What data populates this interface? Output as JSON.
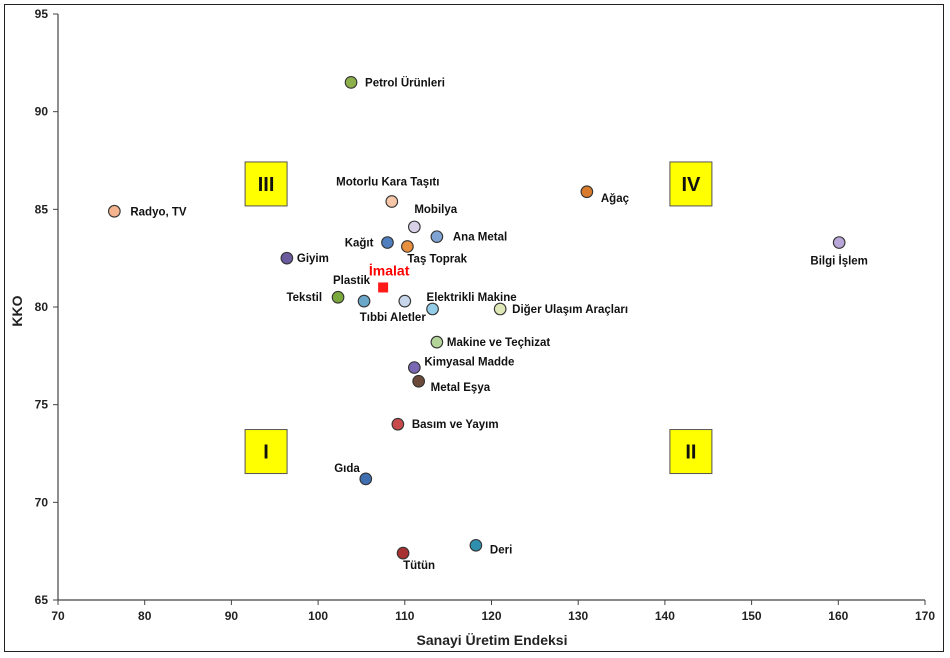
{
  "chart_data": {
    "type": "scatter",
    "xlabel": "Sanayi Üretim Endeksi",
    "ylabel": "KKO",
    "xlim": [
      70,
      170
    ],
    "ylim": [
      65,
      95
    ],
    "x_ticks": [
      "70",
      "80",
      "90",
      "100",
      "110",
      "120",
      "130",
      "140",
      "150",
      "160",
      "170"
    ],
    "y_ticks": [
      "65",
      "70",
      "75",
      "80",
      "85",
      "90",
      "95"
    ],
    "grid": false,
    "points": [
      {
        "label": "Petrol Ürünleri",
        "x": 103.8,
        "y": 91.5,
        "color": "#8db04a"
      },
      {
        "label": "Motorlu Kara Taşıtı",
        "x": 108.5,
        "y": 85.4,
        "color": "#f5c6a8"
      },
      {
        "label": "Ağaç",
        "x": 131.0,
        "y": 85.9,
        "color": "#d97b2c"
      },
      {
        "label": "Radyo, TV",
        "x": 76.5,
        "y": 84.9,
        "color": "#f5b48e"
      },
      {
        "label": "Mobilya",
        "x": 111.1,
        "y": 84.1,
        "color": "#d8d0e6"
      },
      {
        "label": "Bilgi İşlem",
        "x": 160.1,
        "y": 83.3,
        "color": "#b9a6d8"
      },
      {
        "label": "Ana Metal",
        "x": 113.7,
        "y": 83.6,
        "color": "#7fa3d3"
      },
      {
        "label": "Kağıt",
        "x": 108.0,
        "y": 83.3,
        "color": "#4f7fbf"
      },
      {
        "label": "Taş Toprak",
        "x": 110.3,
        "y": 83.1,
        "color": "#e8903d"
      },
      {
        "label": "Giyim",
        "x": 96.4,
        "y": 82.5,
        "color": "#6b5a9e"
      },
      {
        "label": "İmalat",
        "x": 107.5,
        "y": 81.0,
        "color": "#ff1a1a",
        "marker": "square"
      },
      {
        "label": "Plastik",
        "x": 105.3,
        "y": 80.3,
        "color": "#6aa7c9"
      },
      {
        "label": "Tekstil",
        "x": 102.3,
        "y": 80.5,
        "color": "#7aa83d"
      },
      {
        "label": "Tıbbi Aletler",
        "x": 110.0,
        "y": 80.3,
        "color": "#c8d6ec"
      },
      {
        "label": "Elektrikli Makine",
        "x": 113.2,
        "y": 79.9,
        "color": "#93cde8"
      },
      {
        "label": "Diğer Ulaşım Araçları",
        "x": 121.0,
        "y": 79.9,
        "color": "#dde8b6"
      },
      {
        "label": "Makine ve Teçhizat",
        "x": 113.7,
        "y": 78.2,
        "color": "#b5d49a"
      },
      {
        "label": "Kimyasal Madde",
        "x": 111.1,
        "y": 76.9,
        "color": "#7a67b3"
      },
      {
        "label": "Metal Eşya",
        "x": 111.6,
        "y": 76.2,
        "color": "#6b4a3a"
      },
      {
        "label": "Basım ve Yayım",
        "x": 109.2,
        "y": 74.0,
        "color": "#c94a4a"
      },
      {
        "label": "Gıda",
        "x": 105.5,
        "y": 71.2,
        "color": "#3f6fb0"
      },
      {
        "label": "Deri",
        "x": 118.2,
        "y": 67.8,
        "color": "#2f8faf"
      },
      {
        "label": "Tütün",
        "x": 109.8,
        "y": 67.4,
        "color": "#a83232"
      }
    ],
    "quadrant_labels": [
      {
        "text": "III",
        "x": 94.0,
        "y": 86.3
      },
      {
        "text": "IV",
        "x": 143.0,
        "y": 86.3
      },
      {
        "text": "I",
        "x": 94.0,
        "y": 72.6
      },
      {
        "text": "II",
        "x": 143.0,
        "y": 72.6
      }
    ],
    "quadrant_box_color": "#ffff00",
    "highlight_label_color": "#ff0000"
  }
}
